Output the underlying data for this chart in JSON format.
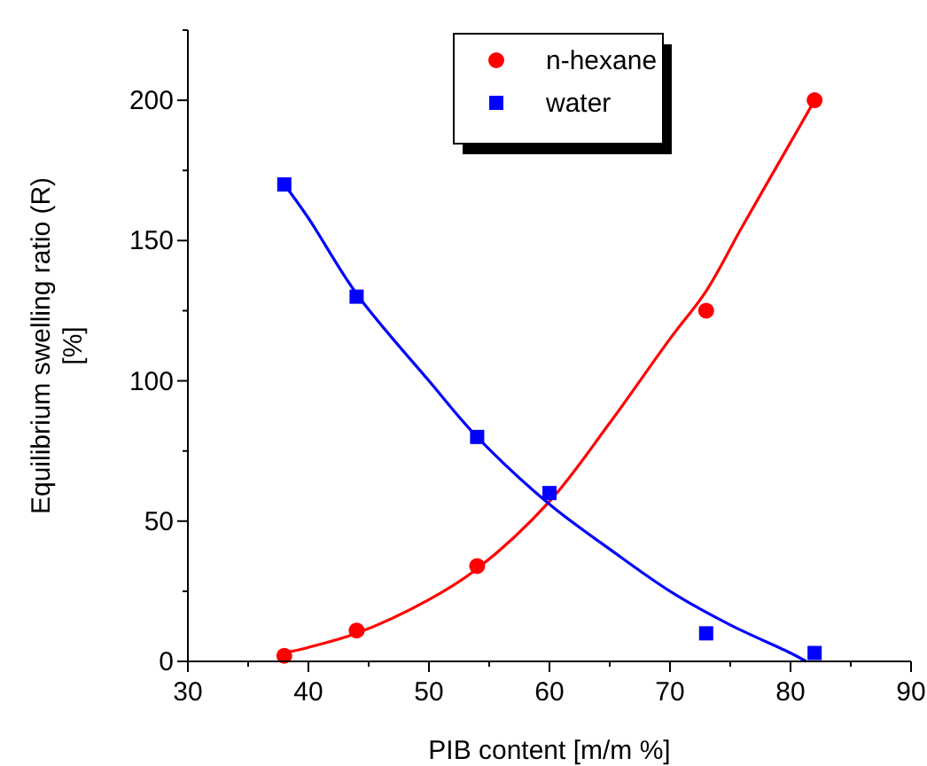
{
  "chart_data": {
    "type": "scatter",
    "xlabel": "PIB content [m/m %]",
    "ylabel": "Equilibrium swelling ratio (R) [%]",
    "xlim": [
      30,
      90
    ],
    "ylim": [
      0,
      225
    ],
    "xticks": [
      30,
      {
        "value": 35,
        "label": null
      },
      40,
      {
        "value": 45,
        "label": null
      },
      50,
      {
        "value": 55,
        "label": null
      },
      60,
      {
        "value": 65,
        "label": null
      },
      70,
      {
        "value": 75,
        "label": null
      },
      80,
      {
        "value": 85,
        "label": null
      },
      90
    ],
    "yticks": [
      0,
      {
        "value": 25,
        "label": null
      },
      50,
      {
        "value": 75,
        "label": null
      },
      100,
      {
        "value": 125,
        "label": null
      },
      150,
      {
        "value": 175,
        "label": null
      },
      200,
      {
        "value": 225,
        "label": null
      }
    ],
    "grid": false,
    "legend": "top",
    "series": [
      {
        "type": "line",
        "color": "#ff0000",
        "marker": "none",
        "x": [
          38,
          40,
          44,
          50,
          54,
          60,
          65,
          70,
          73,
          76,
          80,
          82
        ],
        "values": [
          3,
          5,
          10,
          22,
          33,
          57,
          85,
          115,
          132,
          155,
          185,
          200
        ]
      },
      {
        "type": "line",
        "color": "#0000ff",
        "marker": "none",
        "x": [
          38,
          40,
          44,
          50,
          54,
          60,
          65,
          70,
          75,
          80,
          81.3
        ],
        "values": [
          170,
          158,
          131,
          100,
          80,
          56,
          40,
          25,
          13,
          3,
          0
        ]
      },
      {
        "name": "n-hexane",
        "color": "#ff0000",
        "marker": "circle",
        "x": [
          38,
          44,
          54,
          73,
          82
        ],
        "values": [
          2,
          11,
          34,
          125,
          200
        ]
      },
      {
        "name": "water",
        "color": "#0000ff",
        "marker": "square",
        "x": [
          38,
          44,
          54,
          60,
          73,
          82
        ],
        "values": [
          170,
          130,
          80,
          60,
          10,
          3
        ]
      }
    ]
  }
}
